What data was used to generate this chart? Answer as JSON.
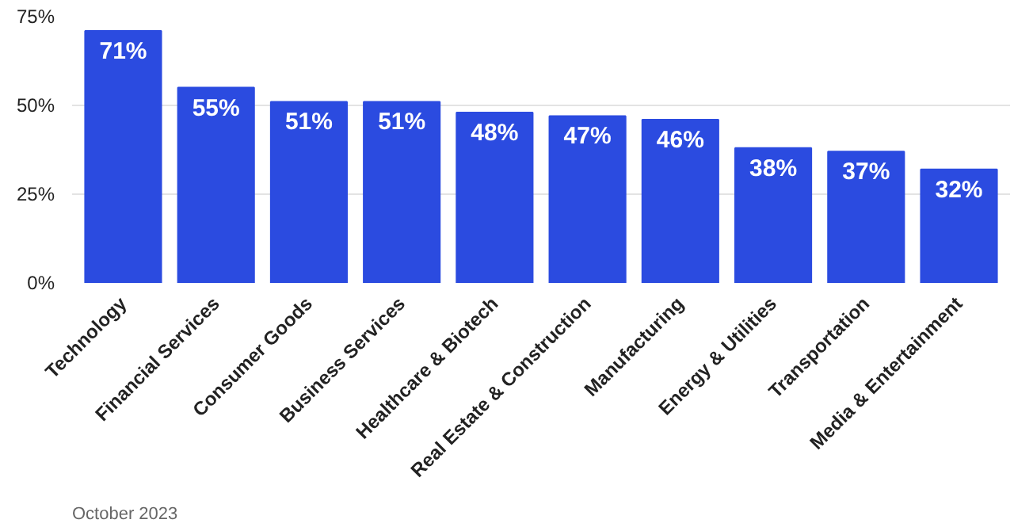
{
  "chart_data": {
    "type": "bar",
    "categories": [
      "Technology",
      "Financial Services",
      "Consumer Goods",
      "Business Services",
      "Healthcare & Biotech",
      "Real Estate & Construction",
      "Manufacturing",
      "Energy & Utilities",
      "Transportation",
      "Media & Entertainment"
    ],
    "values": [
      71,
      55,
      51,
      51,
      48,
      47,
      46,
      38,
      37,
      32
    ],
    "value_labels": [
      "71%",
      "55%",
      "51%",
      "51%",
      "48%",
      "47%",
      "46%",
      "38%",
      "37%",
      "32%"
    ],
    "color": "#2b4be0",
    "ylim": [
      0,
      75
    ],
    "yticks": [
      {
        "value": 0,
        "label": "0%"
      },
      {
        "value": 25,
        "label": "25%"
      },
      {
        "value": 50,
        "label": "50%"
      },
      {
        "value": 75,
        "label": "75%"
      }
    ],
    "grid": "y",
    "annotations": [
      "October 2023"
    ]
  }
}
